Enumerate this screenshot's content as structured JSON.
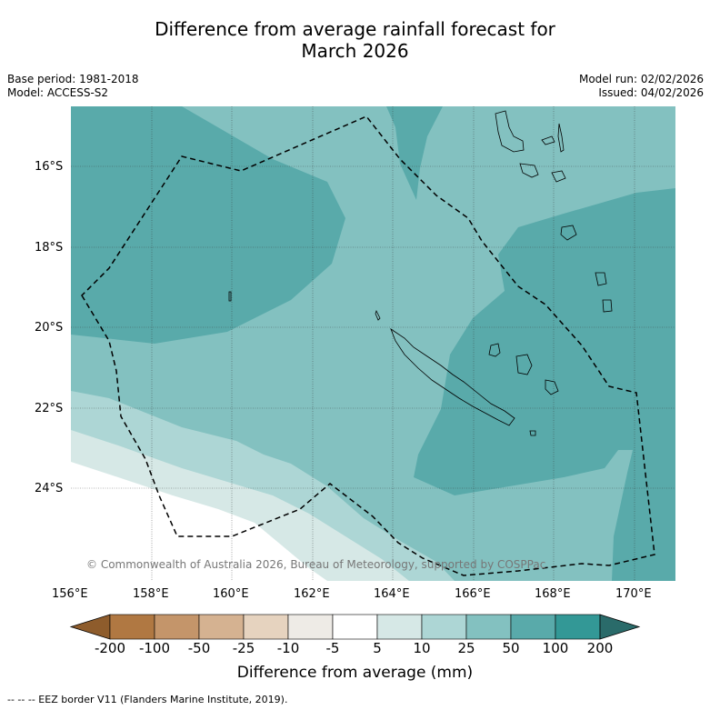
{
  "title_line1": "Difference from average rainfall forecast for",
  "title_line2": "March 2026",
  "meta_left": [
    "Base period: 1981-2018",
    "Model: ACCESS-S2"
  ],
  "meta_right": [
    "Model run: 02/02/2026",
    "Issued: 04/02/2026"
  ],
  "copyright": "© Commonwealth of Australia 2026, Bureau of Meteorology, supported by COSPPac",
  "lat_labels": [
    "16°S",
    "18°S",
    "20°S",
    "22°S",
    "24°S"
  ],
  "lon_labels": [
    "156°E",
    "158°E",
    "160°E",
    "162°E",
    "164°E",
    "166°E",
    "168°E",
    "170°E"
  ],
  "colorbar": {
    "labels": [
      "-200",
      "-100",
      "-50",
      "-25",
      "-10",
      "-5",
      "5",
      "10",
      "25",
      "50",
      "100",
      "200"
    ],
    "colors": [
      "#8e5c2c",
      "#b07842",
      "#c4956a",
      "#d5b291",
      "#e6d3bf",
      "#eeebe6",
      "#ffffff",
      "#d6e8e6",
      "#add6d5",
      "#83c1c0",
      "#59aaaa",
      "#339896",
      "#2a6b6a"
    ],
    "title": "Difference from average (mm)"
  },
  "legend_note": "--  --  -- EEZ border V11 (Flanders Marine Institute, 2019)."
}
